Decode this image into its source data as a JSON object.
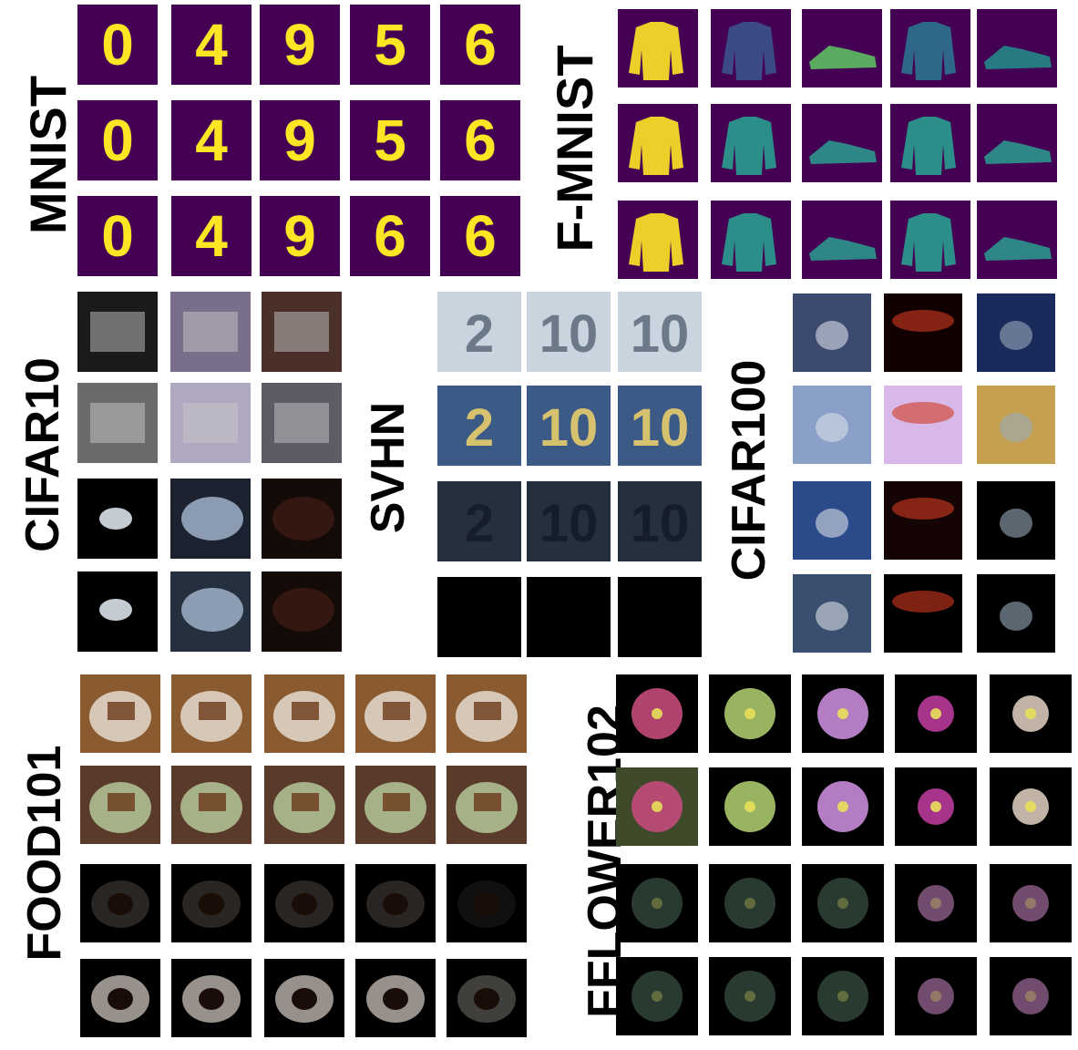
{
  "panels": {
    "mnist": {
      "label": "MNIST"
    },
    "fmnist": {
      "label": "F-MNIST"
    },
    "cifar10": {
      "label": "CIFAR10"
    },
    "svhn": {
      "label": "SVHN"
    },
    "cifar100": {
      "label": "CIFAR100"
    },
    "food101": {
      "label": "FOOD101"
    },
    "fflower102": {
      "label": "FFLOWER102"
    }
  },
  "colors": {
    "mnist_bg": "#440154",
    "mnist_fg": "#fde725",
    "fmnist_mid": "#21918c",
    "dark": "#000000"
  },
  "mnist_digits": [
    "0",
    "4",
    "9",
    "5",
    "6",
    "0",
    "4",
    "9",
    "5",
    "6",
    "0",
    "4",
    "9",
    "6",
    "6"
  ],
  "svhn_digits": [
    "2",
    "10",
    "10",
    "2",
    "10",
    "10",
    "2",
    "10",
    "10",
    "",
    "",
    ""
  ]
}
